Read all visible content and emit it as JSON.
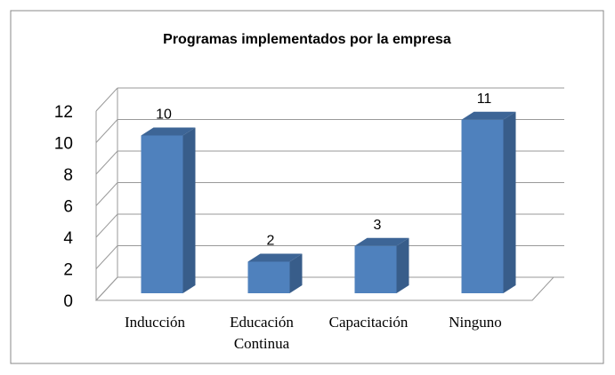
{
  "chart_data": {
    "type": "bar3d",
    "title": "Programas implementados por la empresa",
    "categories": [
      "Inducción",
      "Educación Continua",
      "Capacitación",
      "Ninguno"
    ],
    "values": [
      10,
      2,
      3,
      11
    ],
    "color": "#4f81bd",
    "ylim": [
      0,
      12
    ],
    "yticks": [
      0,
      2,
      4,
      6,
      8,
      10,
      12
    ],
    "grid": true
  }
}
